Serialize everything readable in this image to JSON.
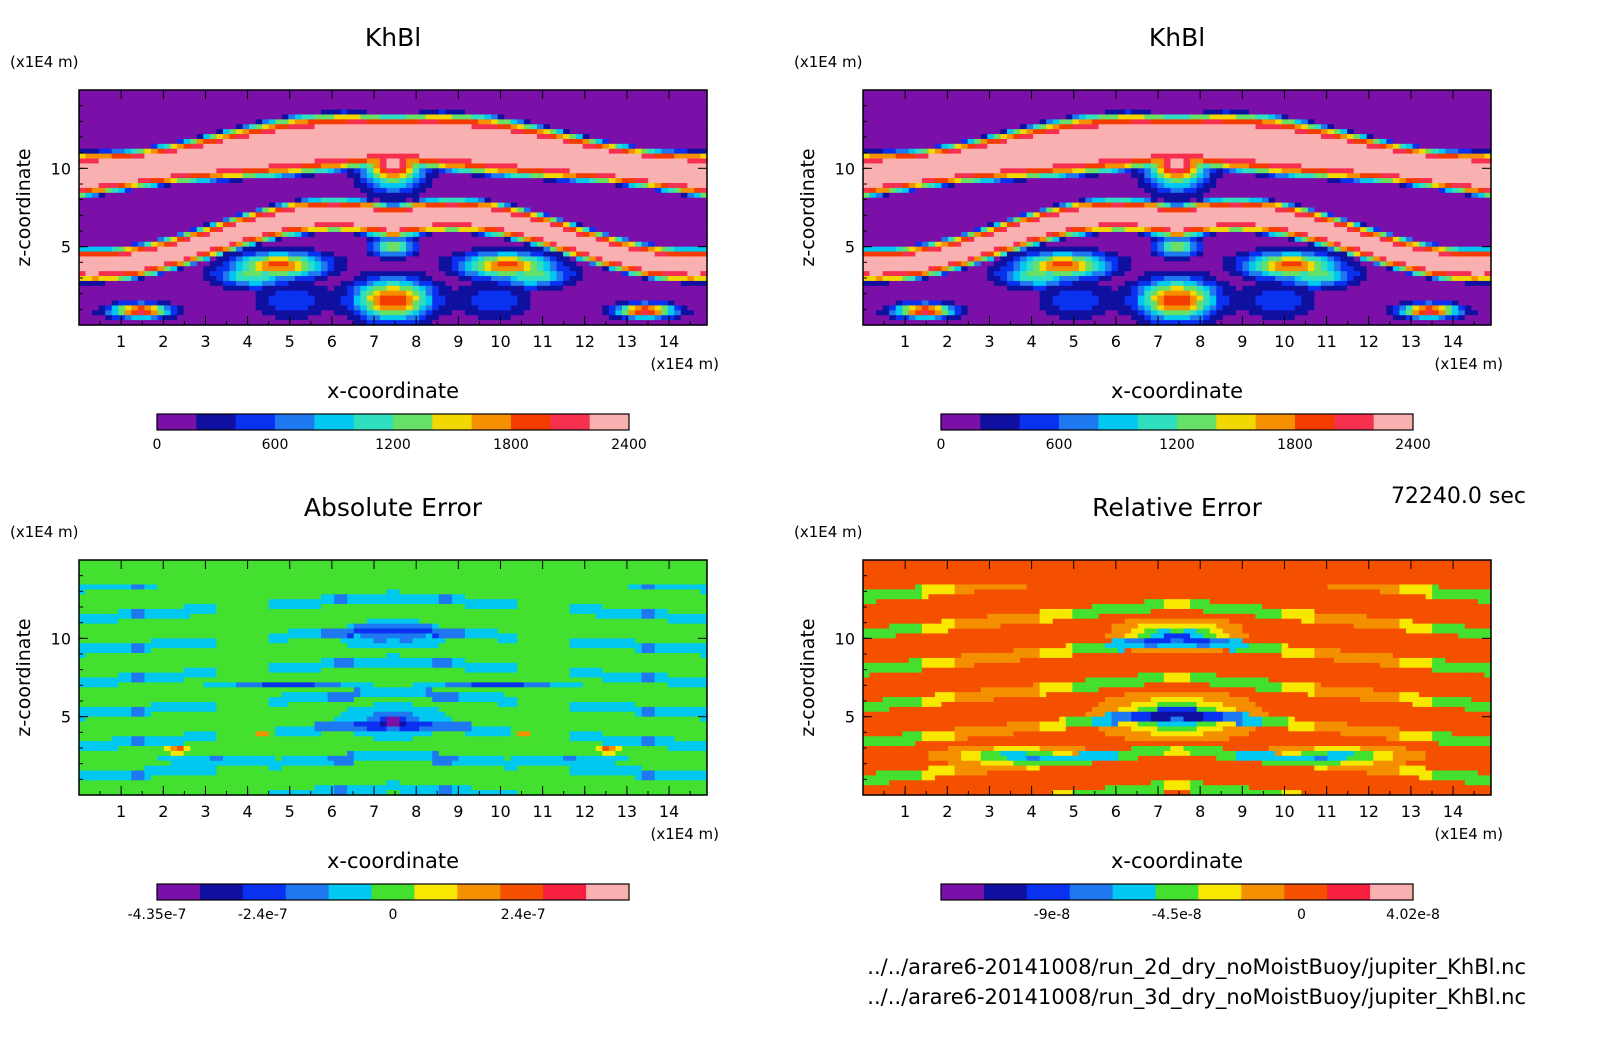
{
  "time_label": "72240.0 sec",
  "files": [
    "../../arare6-20141008/run_2d_dry_noMoistBuoy/jupiter_KhBl.nc",
    "../../arare6-20141008/run_3d_dry_noMoistBuoy/jupiter_KhBl.nc"
  ],
  "chart_data": [
    {
      "type": "heatmap",
      "title": "KhBl",
      "xlabel": "x-coordinate",
      "ylabel": "z-coordinate",
      "xunit": "(x1E4 m)",
      "yunit": "(x1E4 m)",
      "xticks": [
        "1",
        "2",
        "3",
        "4",
        "5",
        "6",
        "7",
        "8",
        "9",
        "10",
        "11",
        "12",
        "13",
        "14"
      ],
      "yticks": [
        "5",
        "10"
      ],
      "xlim": [
        0,
        14.9
      ],
      "ylim": [
        0,
        15
      ],
      "scheme": "khbl",
      "colorbar": {
        "colors": [
          "#7a10a8",
          "#1010a0",
          "#0a30f0",
          "#1e78f0",
          "#00c8f0",
          "#2ee0c0",
          "#66e066",
          "#f0d800",
          "#f49000",
          "#f43c00",
          "#f83050",
          "#f8b0b0"
        ],
        "labels": [
          "0",
          "600",
          "1200",
          "1800",
          "2400"
        ],
        "min": 0,
        "max": 2400
      }
    },
    {
      "type": "heatmap",
      "title": "KhBl",
      "xlabel": "x-coordinate",
      "ylabel": "z-coordinate",
      "xunit": "(x1E4 m)",
      "yunit": "(x1E4 m)",
      "xticks": [
        "1",
        "2",
        "3",
        "4",
        "5",
        "6",
        "7",
        "8",
        "9",
        "10",
        "11",
        "12",
        "13",
        "14"
      ],
      "yticks": [
        "5",
        "10"
      ],
      "xlim": [
        0,
        14.9
      ],
      "ylim": [
        0,
        15
      ],
      "scheme": "khbl",
      "colorbar": {
        "colors": [
          "#7a10a8",
          "#1010a0",
          "#0a30f0",
          "#1e78f0",
          "#00c8f0",
          "#2ee0c0",
          "#66e066",
          "#f0d800",
          "#f49000",
          "#f43c00",
          "#f83050",
          "#f8b0b0"
        ],
        "labels": [
          "0",
          "600",
          "1200",
          "1800",
          "2400"
        ],
        "min": 0,
        "max": 2400
      }
    },
    {
      "type": "heatmap",
      "title": "Absolute Error",
      "xlabel": "x-coordinate",
      "ylabel": "z-coordinate",
      "xunit": "(x1E4 m)",
      "yunit": "(x1E4 m)",
      "xticks": [
        "1",
        "2",
        "3",
        "4",
        "5",
        "6",
        "7",
        "8",
        "9",
        "10",
        "11",
        "12",
        "13",
        "14"
      ],
      "yticks": [
        "5",
        "10"
      ],
      "xlim": [
        0,
        14.9
      ],
      "ylim": [
        0,
        15
      ],
      "scheme": "abs",
      "colorbar": {
        "colors": [
          "#7a10a8",
          "#1010a0",
          "#0a30f0",
          "#1e78f0",
          "#00c8f0",
          "#44e030",
          "#f8e800",
          "#f49000",
          "#f45000",
          "#f82040",
          "#f8b0b0"
        ],
        "labels": [
          "-4.35e-7",
          "-2.4e-7",
          "0",
          "2.4e-7"
        ],
        "min": -4.35e-07,
        "max": 4.35e-07
      }
    },
    {
      "type": "heatmap",
      "title": "Relative Error",
      "xlabel": "x-coordinate",
      "ylabel": "z-coordinate",
      "xunit": "(x1E4 m)",
      "yunit": "(x1E4 m)",
      "xticks": [
        "1",
        "2",
        "3",
        "4",
        "5",
        "6",
        "7",
        "8",
        "9",
        "10",
        "11",
        "12",
        "13",
        "14"
      ],
      "yticks": [
        "5",
        "10"
      ],
      "xlim": [
        0,
        14.9
      ],
      "ylim": [
        0,
        15
      ],
      "scheme": "rel",
      "colorbar": {
        "colors": [
          "#7a10a8",
          "#1010a0",
          "#0a30f0",
          "#1e78f0",
          "#00c8f0",
          "#44e030",
          "#f8e800",
          "#f49000",
          "#f45000",
          "#f82040",
          "#f8b0b0"
        ],
        "labels": [
          "-9e-8",
          "-4.5e-8",
          "0",
          "4.02e-8"
        ],
        "min": -1.3e-07,
        "max": 4.02e-08
      }
    }
  ]
}
